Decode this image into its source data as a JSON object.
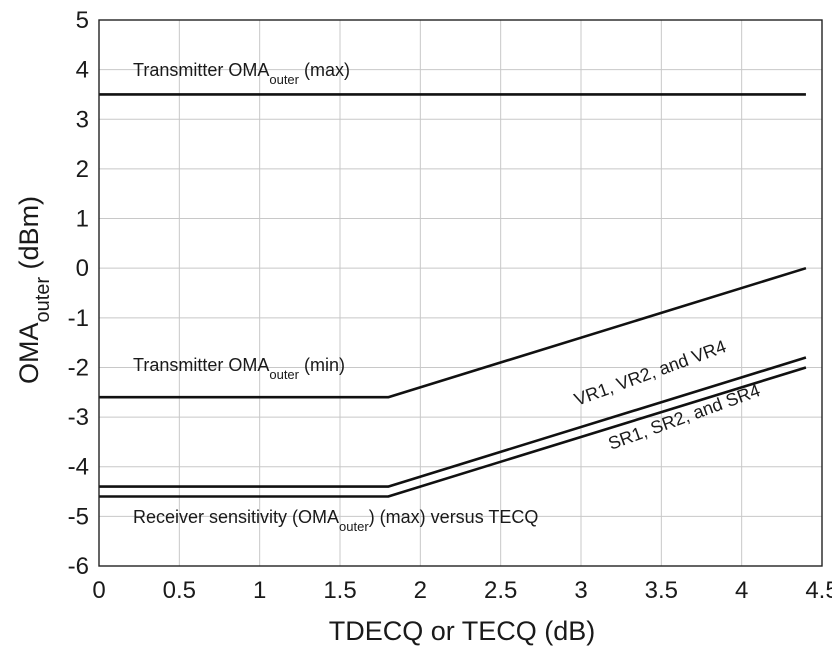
{
  "chart_data": {
    "type": "line",
    "xlabel": "TDECQ or TECQ (dB)",
    "ylabel": {
      "main": "OMA",
      "sub": "outer",
      "unit": " (dBm)"
    },
    "xlim": [
      0,
      4.5
    ],
    "ylim": [
      -6,
      5
    ],
    "x_ticks": [
      "0",
      "0.5",
      "1",
      "1.5",
      "2",
      "2.5",
      "3",
      "3.5",
      "4",
      "4.5"
    ],
    "y_ticks": [
      "-6",
      "-5",
      "-4",
      "-3",
      "-2",
      "-1",
      "0",
      "1",
      "2",
      "3",
      "4",
      "5"
    ],
    "grid": true,
    "series": [
      {
        "x": [
          0,
          4.4
        ],
        "y": [
          3.5,
          3.5
        ]
      },
      {
        "x": [
          0,
          1.8,
          4.4
        ],
        "y": [
          -2.6,
          -2.6,
          0.0
        ]
      },
      {
        "x": [
          0,
          1.8,
          4.4
        ],
        "y": [
          -4.4,
          -4.4,
          -1.8
        ]
      },
      {
        "x": [
          0,
          1.8,
          4.4
        ],
        "y": [
          -4.6,
          -4.6,
          -2.0
        ]
      }
    ],
    "annotations": {
      "tx_max": {
        "pre": "Transmitter OMA",
        "sub": "outer",
        "post": " (max)"
      },
      "tx_min": {
        "pre": "Transmitter OMA",
        "sub": "outer",
        "post": " (min)"
      },
      "vr": "VR1, VR2, and VR4",
      "sr": "SR1, SR2, and SR4",
      "rx": {
        "pre": "Receiver sensitivity (OMA",
        "sub": "outer",
        "post": ") (max) versus TECQ"
      }
    }
  }
}
